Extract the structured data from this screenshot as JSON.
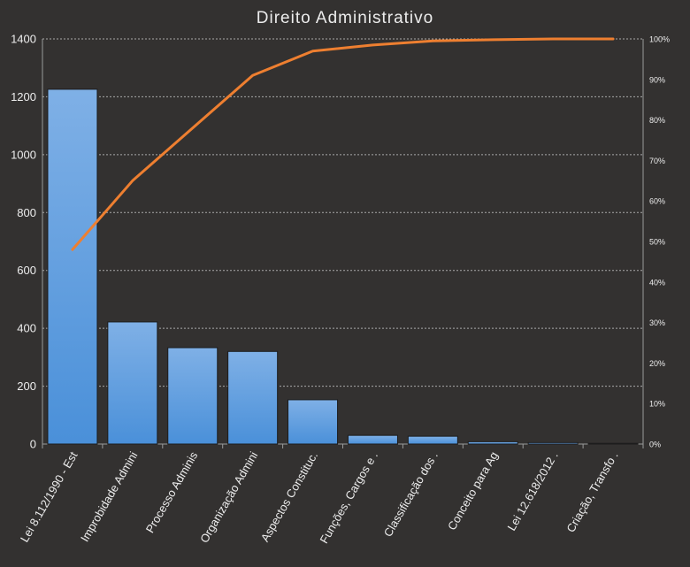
{
  "chart_data": {
    "type": "bar",
    "title": "Direito Administrativo",
    "categories": [
      "Lei 8.112/1990 - Est",
      "Improbidade Admini",
      "Processo Adminis",
      "Organização Admini",
      "Aspectos Constituc.",
      "Funções, Cargos e .",
      "Classificação dos .",
      "Conceito para Ag",
      "Lei 12.618/2012 .",
      "Criação, Transfo ."
    ],
    "series": [
      {
        "type": "bar",
        "values": [
          1226,
          422,
          333,
          320,
          153,
          30,
          27,
          8,
          5,
          1
        ]
      },
      {
        "type": "line",
        "axis": "right",
        "values": [
          0.48,
          0.65,
          0.78,
          0.91,
          0.97,
          0.985,
          0.995,
          0.998,
          1.0,
          1.0
        ]
      }
    ],
    "ylim": [
      0,
      1400
    ],
    "yticks": [
      0,
      200,
      400,
      600,
      800,
      1000,
      1200,
      1400
    ],
    "y2lim": [
      0,
      1
    ],
    "y2ticks": [
      "0%",
      "10%",
      "20%",
      "30%",
      "40%",
      "50%",
      "60%",
      "70%",
      "80%",
      "90%",
      "100%"
    ],
    "grid": true,
    "colors": {
      "background": "#333130",
      "bar": "#4a90d9",
      "bar_light": "#7fb0e6",
      "line": "#ee7f30"
    }
  }
}
